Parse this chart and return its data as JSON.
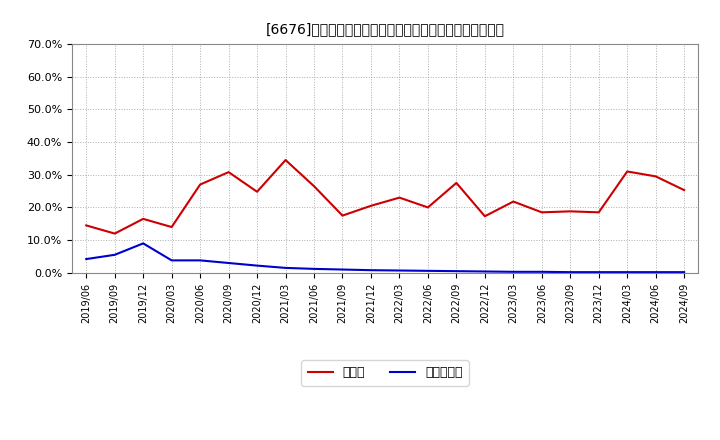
{
  "title": "[6676]　現須金、有利子負債の総資産に対する比率の推移",
  "cash_label": "現須金",
  "debt_label": "有利子負債",
  "cash_color": "#cc0000",
  "debt_color": "#0000cc",
  "background_color": "#ffffff",
  "grid_color": "#999999",
  "ylim": [
    0.0,
    0.7
  ],
  "yticks": [
    0.0,
    0.1,
    0.2,
    0.3,
    0.4,
    0.5,
    0.6,
    0.7
  ],
  "dates": [
    "2019/06",
    "2019/09",
    "2019/12",
    "2020/03",
    "2020/06",
    "2020/09",
    "2020/12",
    "2021/03",
    "2021/06",
    "2021/09",
    "2021/12",
    "2022/03",
    "2022/06",
    "2022/09",
    "2022/12",
    "2023/03",
    "2023/06",
    "2023/09",
    "2023/12",
    "2024/03",
    "2024/06",
    "2024/09"
  ],
  "cash_values": [
    0.145,
    0.12,
    0.165,
    0.14,
    0.27,
    0.308,
    0.248,
    0.345,
    0.265,
    0.175,
    0.205,
    0.23,
    0.2,
    0.275,
    0.173,
    0.218,
    0.185,
    0.188,
    0.185,
    0.31,
    0.295,
    0.253
  ],
  "debt_values": [
    0.042,
    0.055,
    0.09,
    0.038,
    0.038,
    0.03,
    0.022,
    0.015,
    0.012,
    0.01,
    0.008,
    0.007,
    0.006,
    0.005,
    0.004,
    0.003,
    0.003,
    0.002,
    0.002,
    0.002,
    0.002,
    0.002
  ]
}
